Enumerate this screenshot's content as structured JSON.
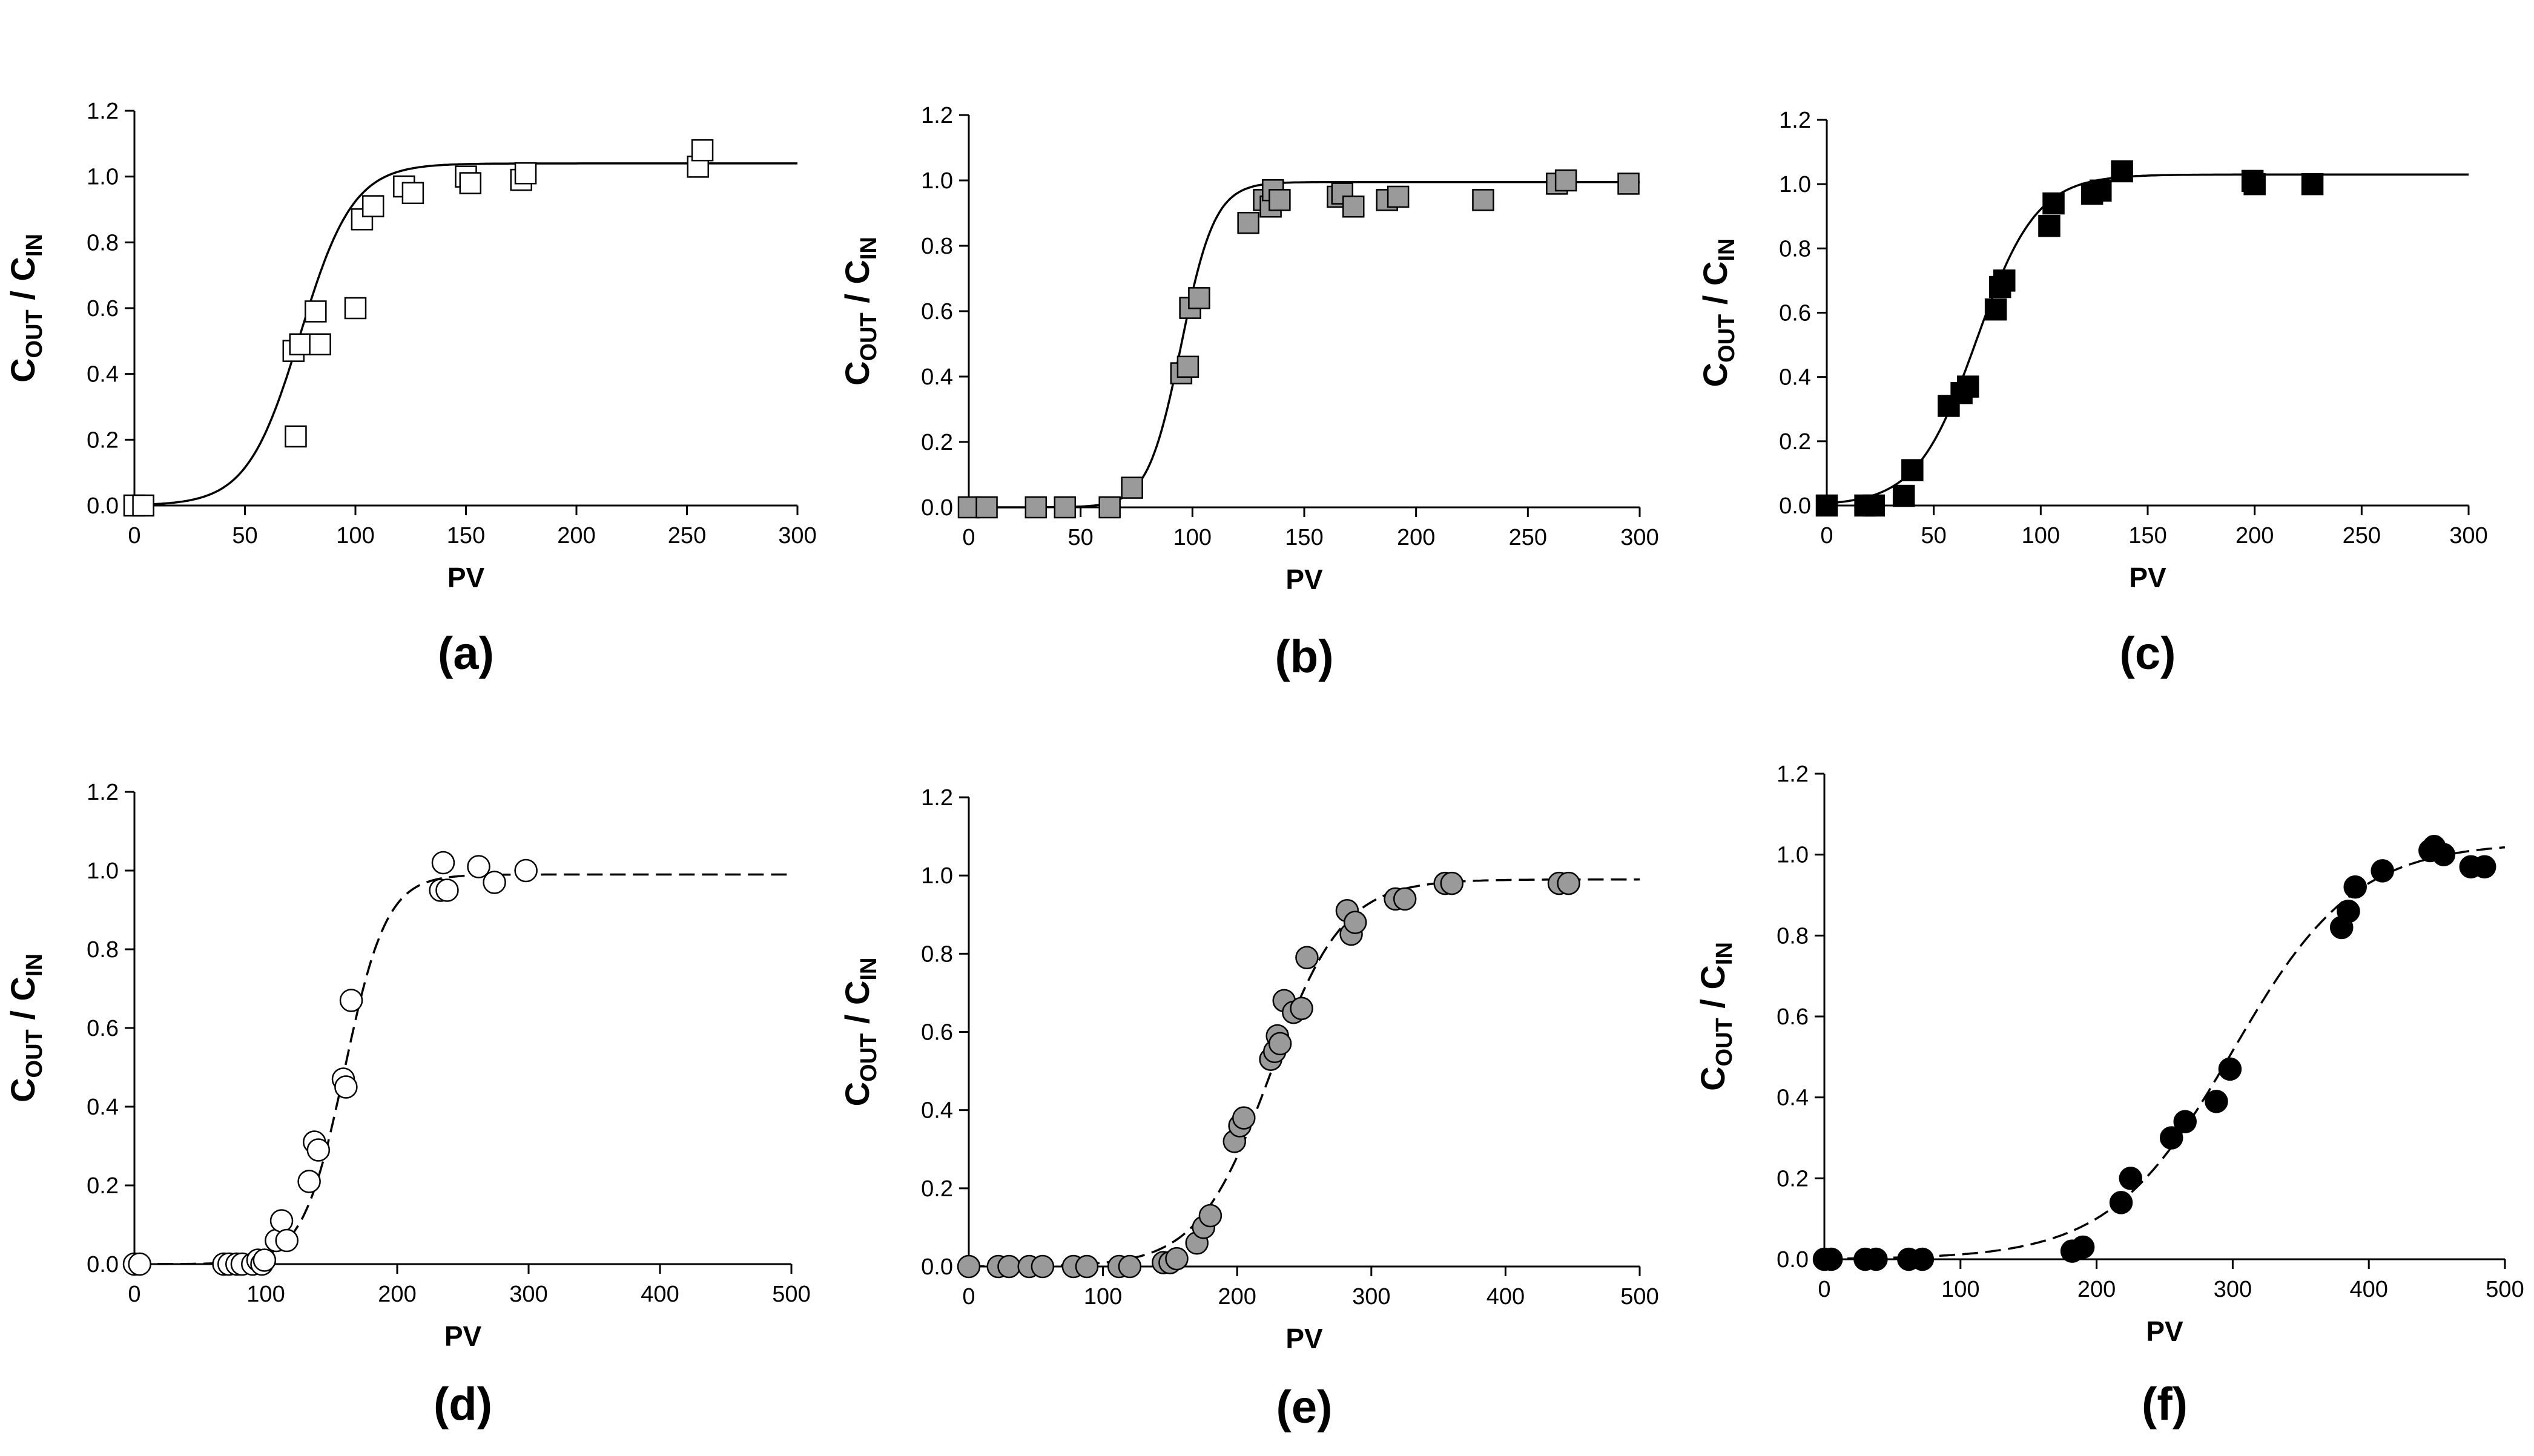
{
  "figure": {
    "ylabel_main": "C",
    "ylabel_sub_out": "OUT",
    "ylabel_slash": " / C",
    "ylabel_sub_in": "IN"
  },
  "chart_data": [
    {
      "panel": "(a)",
      "type": "scatter",
      "marker": "square",
      "fill": "#ffffff",
      "line": "solid",
      "xlabel": "PV",
      "xlim": [
        0,
        300
      ],
      "xticks": [
        0,
        50,
        100,
        150,
        200,
        250,
        300
      ],
      "ylim": [
        0,
        1.2
      ],
      "yticks": [
        "0.0",
        "0.2",
        "0.4",
        "0.6",
        "0.8",
        "1.0",
        "1.2"
      ],
      "fit": {
        "plateau": 1.04,
        "mid": 75,
        "width": 12
      },
      "points": [
        [
          0,
          0
        ],
        [
          4,
          0
        ],
        [
          72,
          0.47
        ],
        [
          73,
          0.21
        ],
        [
          75,
          0.49
        ],
        [
          82,
          0.59
        ],
        [
          84,
          0.49
        ],
        [
          100,
          0.6
        ],
        [
          103,
          0.87
        ],
        [
          108,
          0.91
        ],
        [
          122,
          0.97
        ],
        [
          126,
          0.95
        ],
        [
          150,
          1.0
        ],
        [
          152,
          0.98
        ],
        [
          175,
          0.99
        ],
        [
          177,
          1.01
        ],
        [
          255,
          1.03
        ],
        [
          257,
          1.08
        ]
      ]
    },
    {
      "panel": "(b)",
      "type": "scatter",
      "marker": "square",
      "fill": "#9a9a9a",
      "line": "solid",
      "xlabel": "PV",
      "xlim": [
        0,
        300
      ],
      "xticks": [
        0,
        50,
        100,
        150,
        200,
        250,
        300
      ],
      "ylim": [
        0,
        1.2
      ],
      "yticks": [
        "0.0",
        "0.2",
        "0.4",
        "0.6",
        "0.8",
        "1.0",
        "1.2"
      ],
      "fit": {
        "plateau": 0.995,
        "mid": 95,
        "width": 7.5
      },
      "points": [
        [
          0,
          0
        ],
        [
          8,
          0
        ],
        [
          30,
          0
        ],
        [
          43,
          0
        ],
        [
          63,
          0
        ],
        [
          73,
          0.06
        ],
        [
          95,
          0.41
        ],
        [
          98,
          0.43
        ],
        [
          99,
          0.61
        ],
        [
          103,
          0.64
        ],
        [
          125,
          0.87
        ],
        [
          132,
          0.94
        ],
        [
          135,
          0.92
        ],
        [
          136,
          0.97
        ],
        [
          139,
          0.94
        ],
        [
          165,
          0.95
        ],
        [
          167,
          0.96
        ],
        [
          172,
          0.92
        ],
        [
          187,
          0.94
        ],
        [
          192,
          0.95
        ],
        [
          230,
          0.94
        ],
        [
          263,
          0.99
        ],
        [
          267,
          1.0
        ],
        [
          295,
          0.99
        ]
      ]
    },
    {
      "panel": "(c)",
      "type": "scatter",
      "marker": "square",
      "fill": "#000000",
      "line": "solid",
      "xlabel": "PV",
      "xlim": [
        0,
        300
      ],
      "xticks": [
        0,
        50,
        100,
        150,
        200,
        250,
        300
      ],
      "ylim": [
        0,
        1.2
      ],
      "yticks": [
        "0.0",
        "0.2",
        "0.4",
        "0.6",
        "0.8",
        "1.0",
        "1.2"
      ],
      "fit": {
        "plateau": 1.03,
        "mid": 70,
        "width": 14
      },
      "points": [
        [
          0,
          0
        ],
        [
          18,
          0
        ],
        [
          22,
          0
        ],
        [
          36,
          0.03
        ],
        [
          40,
          0.11
        ],
        [
          57,
          0.31
        ],
        [
          63,
          0.35
        ],
        [
          66,
          0.37
        ],
        [
          79,
          0.61
        ],
        [
          81,
          0.68
        ],
        [
          83,
          0.7
        ],
        [
          104,
          0.87
        ],
        [
          106,
          0.94
        ],
        [
          124,
          0.97
        ],
        [
          128,
          0.98
        ],
        [
          138,
          1.04
        ],
        [
          199,
          1.01
        ],
        [
          200,
          1.0
        ],
        [
          227,
          1.0
        ]
      ]
    },
    {
      "panel": "(d)",
      "type": "scatter",
      "marker": "circle",
      "fill": "#ffffff",
      "line": "dashed",
      "xlabel": "PV",
      "xlim": [
        0,
        500
      ],
      "xticks": [
        0,
        100,
        200,
        300,
        400,
        500
      ],
      "ylim": [
        0,
        1.2
      ],
      "yticks": [
        "0.0",
        "0.2",
        "0.4",
        "0.6",
        "0.8",
        "1.0",
        "1.2"
      ],
      "fit": {
        "plateau": 0.99,
        "mid": 160,
        "width": 16
      },
      "points": [
        [
          0,
          0
        ],
        [
          4,
          0
        ],
        [
          68,
          0
        ],
        [
          72,
          0
        ],
        [
          78,
          0
        ],
        [
          82,
          0
        ],
        [
          90,
          0
        ],
        [
          94,
          0.01
        ],
        [
          97,
          0
        ],
        [
          99,
          0.01
        ],
        [
          108,
          0.06
        ],
        [
          112,
          0.11
        ],
        [
          116,
          0.06
        ],
        [
          133,
          0.21
        ],
        [
          137,
          0.31
        ],
        [
          140,
          0.29
        ],
        [
          159,
          0.47
        ],
        [
          161,
          0.45
        ],
        [
          165,
          0.67
        ],
        [
          233,
          0.95
        ],
        [
          235,
          1.02
        ],
        [
          238,
          0.95
        ],
        [
          262,
          1.01
        ],
        [
          274,
          0.97
        ],
        [
          298,
          1.0
        ]
      ]
    },
    {
      "panel": "(e)",
      "type": "scatter",
      "marker": "circle",
      "fill": "#9a9a9a",
      "line": "dashed",
      "xlabel": "PV",
      "xlim": [
        0,
        500
      ],
      "xticks": [
        0,
        100,
        200,
        300,
        400,
        500
      ],
      "ylim": [
        0,
        1.2
      ],
      "yticks": [
        "0.0",
        "0.2",
        "0.4",
        "0.6",
        "0.8",
        "1.0",
        "1.2"
      ],
      "fit": {
        "plateau": 0.99,
        "mid": 225,
        "width": 27
      },
      "points": [
        [
          0,
          0
        ],
        [
          22,
          0
        ],
        [
          30,
          0
        ],
        [
          45,
          0
        ],
        [
          55,
          0
        ],
        [
          78,
          0
        ],
        [
          88,
          0
        ],
        [
          112,
          0
        ],
        [
          120,
          0
        ],
        [
          145,
          0.01
        ],
        [
          150,
          0.01
        ],
        [
          155,
          0.02
        ],
        [
          170,
          0.06
        ],
        [
          175,
          0.1
        ],
        [
          180,
          0.13
        ],
        [
          198,
          0.32
        ],
        [
          202,
          0.36
        ],
        [
          205,
          0.38
        ],
        [
          225,
          0.53
        ],
        [
          228,
          0.55
        ],
        [
          230,
          0.59
        ],
        [
          232,
          0.57
        ],
        [
          235,
          0.68
        ],
        [
          242,
          0.65
        ],
        [
          248,
          0.66
        ],
        [
          252,
          0.79
        ],
        [
          282,
          0.91
        ],
        [
          285,
          0.85
        ],
        [
          288,
          0.88
        ],
        [
          318,
          0.94
        ],
        [
          325,
          0.94
        ],
        [
          355,
          0.98
        ],
        [
          360,
          0.98
        ],
        [
          440,
          0.98
        ],
        [
          447,
          0.98
        ]
      ]
    },
    {
      "panel": "(f)",
      "type": "scatter",
      "marker": "circle",
      "fill": "#000000",
      "line": "dashed",
      "xlabel": "PV",
      "xlim": [
        0,
        500
      ],
      "xticks": [
        0,
        100,
        200,
        300,
        400,
        500
      ],
      "ylim": [
        0,
        1.2
      ],
      "yticks": [
        "0.0",
        "0.2",
        "0.4",
        "0.6",
        "0.8",
        "1.0",
        "1.2"
      ],
      "fit": {
        "plateau": 1.03,
        "mid": 300,
        "width": 45
      },
      "points": [
        [
          0,
          0
        ],
        [
          5,
          0
        ],
        [
          30,
          0
        ],
        [
          38,
          0
        ],
        [
          62,
          0
        ],
        [
          72,
          0
        ],
        [
          182,
          0.02
        ],
        [
          190,
          0.03
        ],
        [
          218,
          0.14
        ],
        [
          225,
          0.2
        ],
        [
          255,
          0.3
        ],
        [
          265,
          0.34
        ],
        [
          288,
          0.39
        ],
        [
          298,
          0.47
        ],
        [
          380,
          0.82
        ],
        [
          385,
          0.86
        ],
        [
          390,
          0.92
        ],
        [
          410,
          0.96
        ],
        [
          445,
          1.01
        ],
        [
          448,
          1.02
        ],
        [
          455,
          1.0
        ],
        [
          475,
          0.97
        ],
        [
          485,
          0.97
        ]
      ]
    }
  ]
}
